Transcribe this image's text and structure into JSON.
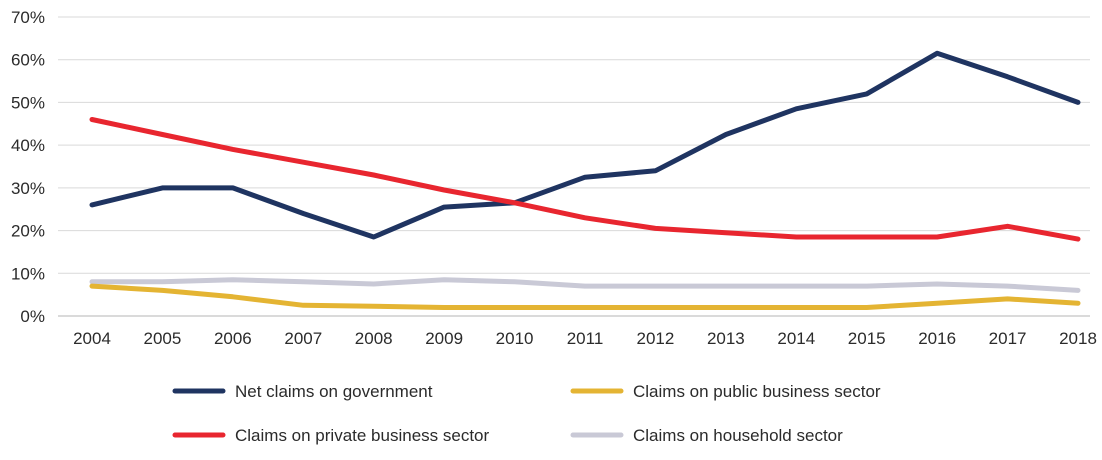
{
  "chart_data": {
    "type": "line",
    "categories": [
      "2004",
      "2005",
      "2006",
      "2007",
      "2008",
      "2009",
      "2010",
      "2011",
      "2012",
      "2013",
      "2014",
      "2015",
      "2016",
      "2017",
      "2018"
    ],
    "ylim": [
      0,
      70
    ],
    "yticks": [
      0,
      10,
      20,
      30,
      40,
      50,
      60,
      70
    ],
    "ytick_labels": [
      "0%",
      "10%",
      "20%",
      "30%",
      "40%",
      "50%",
      "60%",
      "70%"
    ],
    "grid": "horizontal",
    "legend_position": "bottom",
    "series": [
      {
        "name": "Net claims on government",
        "color": "#1f3461",
        "values": [
          26,
          30,
          30,
          24,
          18.5,
          25.5,
          26.5,
          32.5,
          34,
          42.5,
          48.5,
          52,
          61.5,
          56,
          50
        ]
      },
      {
        "name": "Claims on public business sector",
        "color": "#e4b433",
        "values": [
          7,
          6,
          4.5,
          2.5,
          2.3,
          2,
          2,
          2,
          2,
          2,
          2,
          2,
          3,
          4,
          3
        ]
      },
      {
        "name": "Claims on private business sector",
        "color": "#e8262f",
        "values": [
          46,
          42.5,
          39,
          36,
          33,
          29.5,
          26.5,
          23,
          20.5,
          19.5,
          18.5,
          18.5,
          18.5,
          21,
          18
        ]
      },
      {
        "name": "Claims on household sector",
        "color": "#c9c9d6",
        "values": [
          8,
          8,
          8.5,
          8,
          7.5,
          8.5,
          8,
          7,
          7,
          7,
          7,
          7,
          7.5,
          7,
          6
        ]
      }
    ]
  }
}
